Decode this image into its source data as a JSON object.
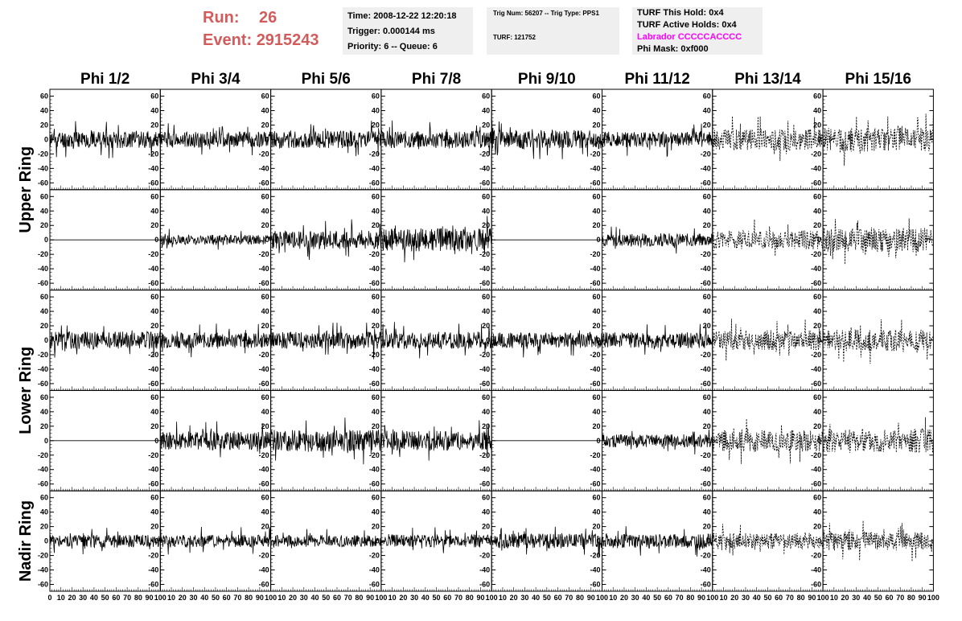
{
  "header": {
    "run_label": "Run:",
    "run_value": "26",
    "event_label": "Event:",
    "event_value": "2915243",
    "colors": {
      "run_text": "#d25c5c",
      "labrador_text": "#ff00ff",
      "info_bg": "#efefef"
    }
  },
  "info_time": {
    "time": "Time: 2008-12-22 12:20:18",
    "trigger": "Trigger: 0.000144 ms",
    "priority": "Priority: 6 -- Queue: 6"
  },
  "info_trig": {
    "trig": "Trig Num: 56207 -- Trig Type: PPS1",
    "turf": "TURF: 121752"
  },
  "info_turf": {
    "this_hold": "TURF This Hold: 0x4",
    "active_holds": "TURF Active Holds: 0x4",
    "labrador": "Labrador CCCCCACCCC",
    "phi_mask": "Phi Mask: 0xf000"
  },
  "chart_data": {
    "type": "line",
    "columns": [
      "Phi 1/2",
      "Phi 3/4",
      "Phi 5/6",
      "Phi 7/8",
      "Phi 9/10",
      "Phi 11/12",
      "Phi 13/14",
      "Phi 15/16"
    ],
    "row_labels": [
      "Upper Ring",
      "Lower Ring",
      "Nadir Ring"
    ],
    "y_ticks": [
      "60",
      "40",
      "20",
      "0",
      "-20",
      "-40",
      "-60"
    ],
    "x_ticks": [
      "0",
      "10",
      "20",
      "30",
      "40",
      "50",
      "60",
      "70",
      "80",
      "90",
      "100"
    ],
    "xlim": [
      0,
      100
    ],
    "ylim": [
      -65,
      65
    ],
    "grid": false,
    "panel_rows": 5,
    "panel_cols": 8,
    "panels": [
      [
        {
          "amp": 12,
          "style": "solid",
          "seed": 11
        },
        {
          "amp": 11,
          "style": "solid",
          "seed": 12
        },
        {
          "amp": 12,
          "style": "solid",
          "seed": 13
        },
        {
          "amp": 12,
          "style": "solid",
          "seed": 14
        },
        {
          "amp": 13,
          "style": "solid",
          "seed": 15
        },
        {
          "amp": 11,
          "style": "solid",
          "seed": 16
        },
        {
          "amp": 15,
          "style": "dashed",
          "seed": 17
        },
        {
          "amp": 17,
          "style": "dashed",
          "seed": 18
        }
      ],
      [
        {
          "amp": 0,
          "style": "solid",
          "seed": 21
        },
        {
          "amp": 7,
          "style": "solid",
          "seed": 22
        },
        {
          "amp": 13,
          "style": "solid",
          "seed": 23
        },
        {
          "amp": 16,
          "style": "solid",
          "seed": 24
        },
        {
          "amp": 0,
          "style": "solid",
          "seed": 25
        },
        {
          "amp": 9,
          "style": "solid",
          "seed": 26
        },
        {
          "amp": 13,
          "style": "dashed",
          "seed": 27
        },
        {
          "amp": 17,
          "style": "dashed",
          "seed": 28
        }
      ],
      [
        {
          "amp": 12,
          "style": "solid",
          "seed": 31
        },
        {
          "amp": 11,
          "style": "solid",
          "seed": 32
        },
        {
          "amp": 12,
          "style": "solid",
          "seed": 33
        },
        {
          "amp": 12,
          "style": "solid",
          "seed": 34
        },
        {
          "amp": 11,
          "style": "solid",
          "seed": 35
        },
        {
          "amp": 11,
          "style": "solid",
          "seed": 36
        },
        {
          "amp": 14,
          "style": "dashed",
          "seed": 37
        },
        {
          "amp": 15,
          "style": "dashed",
          "seed": 38
        }
      ],
      [
        {
          "amp": 0,
          "style": "solid",
          "seed": 41
        },
        {
          "amp": 13,
          "style": "solid",
          "seed": 42
        },
        {
          "amp": 15,
          "style": "solid",
          "seed": 43
        },
        {
          "amp": 14,
          "style": "solid",
          "seed": 44
        },
        {
          "amp": 0,
          "style": "solid",
          "seed": 45
        },
        {
          "amp": 9,
          "style": "solid",
          "seed": 46
        },
        {
          "amp": 15,
          "style": "dashed",
          "seed": 47
        },
        {
          "amp": 17,
          "style": "dashed",
          "seed": 48
        }
      ],
      [
        {
          "amp": 9,
          "style": "solid",
          "seed": 51
        },
        {
          "amp": 9,
          "style": "solid",
          "seed": 52
        },
        {
          "amp": 8,
          "style": "solid",
          "seed": 53
        },
        {
          "amp": 9,
          "style": "solid",
          "seed": 54
        },
        {
          "amp": 10,
          "style": "solid",
          "seed": 55
        },
        {
          "amp": 10,
          "style": "solid",
          "seed": 56
        },
        {
          "amp": 11,
          "style": "dashed",
          "seed": 57
        },
        {
          "amp": 13,
          "style": "dashed",
          "seed": 58
        }
      ]
    ]
  }
}
